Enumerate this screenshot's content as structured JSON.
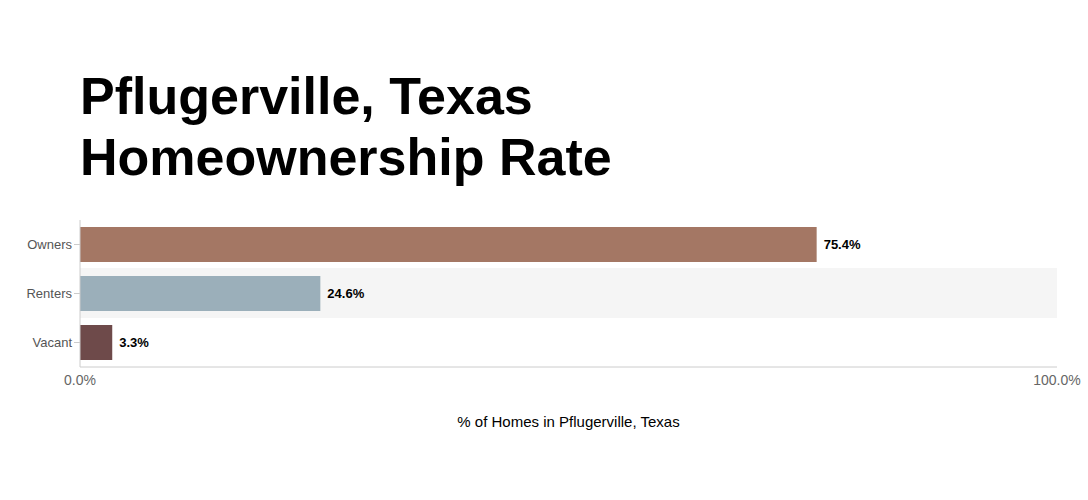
{
  "chart_data": {
    "type": "bar",
    "orientation": "horizontal",
    "title": "Pflugerville, Texas\nHomeownership Rate",
    "x_label": "% of Homes in Pflugerville, Texas",
    "categories": [
      "Owners",
      "Renters",
      "Vacant"
    ],
    "values": [
      75.4,
      24.6,
      3.3
    ],
    "value_labels": [
      "75.4%",
      "24.6%",
      "3.3%"
    ],
    "colors": [
      "#a47764",
      "#9bafba",
      "#6e4a4a"
    ],
    "xlim": [
      0,
      100
    ],
    "xticks": [
      {
        "value": 0,
        "label": "0.0%"
      },
      {
        "value": 100,
        "label": "100.0%"
      }
    ],
    "grid": false,
    "data_labels": true
  }
}
